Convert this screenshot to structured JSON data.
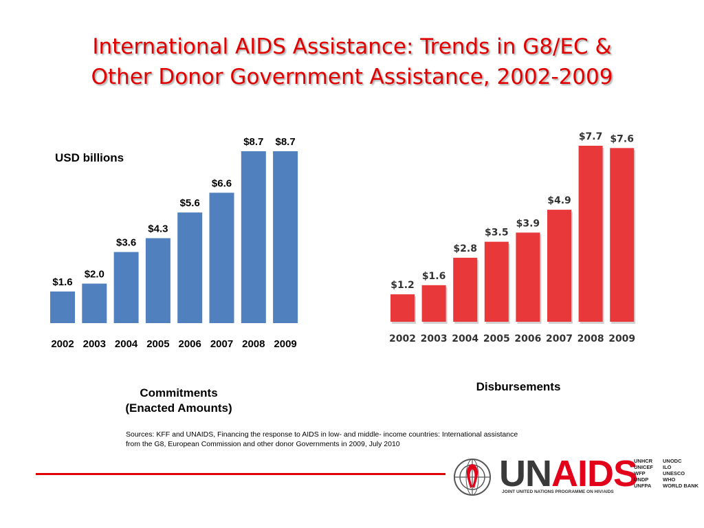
{
  "title": {
    "line1": "International AIDS Assistance: Trends in G8/EC &",
    "line2": "Other Donor Government Assistance, 2002-2009"
  },
  "unit_label": "USD billions",
  "captions": {
    "commitments_line1": "Commitments",
    "commitments_line2": "(Enacted Amounts)",
    "disbursements": "Disbursements"
  },
  "sources": "Sources: KFF and UNAIDS, Financing the response to AIDS in low- and middle- income countries: International assistance from the G8, European Commission and other donor Governments in 2009, July 2010",
  "logo": {
    "brand_un": "UN",
    "brand_aids": "AIDS",
    "tagline": "JOINT UNITED NATIONS PROGRAMME ON HIV/AIDS",
    "cosponsors": [
      "UNHCR",
      "UNODC",
      "UNICEF",
      "ILO",
      "WFP",
      "UNESCO",
      "UNDP",
      "WHO",
      "UNFPA",
      "WORLD BANK"
    ]
  },
  "colors": {
    "title": "#e10000",
    "commitments_bar": "#5080bd",
    "disbursements_bar": "#e8383a",
    "rule": "#e10000"
  },
  "chart_data": [
    {
      "type": "bar",
      "title": "Commitments (Enacted Amounts)",
      "ylabel": "USD billions",
      "categories": [
        "2002",
        "2003",
        "2004",
        "2005",
        "2006",
        "2007",
        "2008",
        "2009"
      ],
      "values": [
        1.6,
        2.0,
        3.6,
        4.3,
        5.6,
        6.6,
        8.7,
        8.7
      ],
      "labels": [
        "$1.6",
        "$2.0",
        "$3.6",
        "$4.3",
        "$5.6",
        "$6.6",
        "$8.7",
        "$8.7"
      ],
      "ylim": [
        0,
        8.7
      ],
      "grid": false
    },
    {
      "type": "bar",
      "title": "Disbursements",
      "categories": [
        "2002",
        "2003",
        "2004",
        "2005",
        "2006",
        "2007",
        "2008",
        "2009"
      ],
      "values": [
        1.2,
        1.6,
        2.8,
        3.5,
        3.9,
        4.9,
        7.7,
        7.6
      ],
      "labels": [
        "$1.2",
        "$1.6",
        "$2.8",
        "$3.5",
        "$3.9",
        "$4.9",
        "$7.7",
        "$7.6"
      ],
      "ylim": [
        0,
        7.7
      ],
      "grid": false
    }
  ]
}
